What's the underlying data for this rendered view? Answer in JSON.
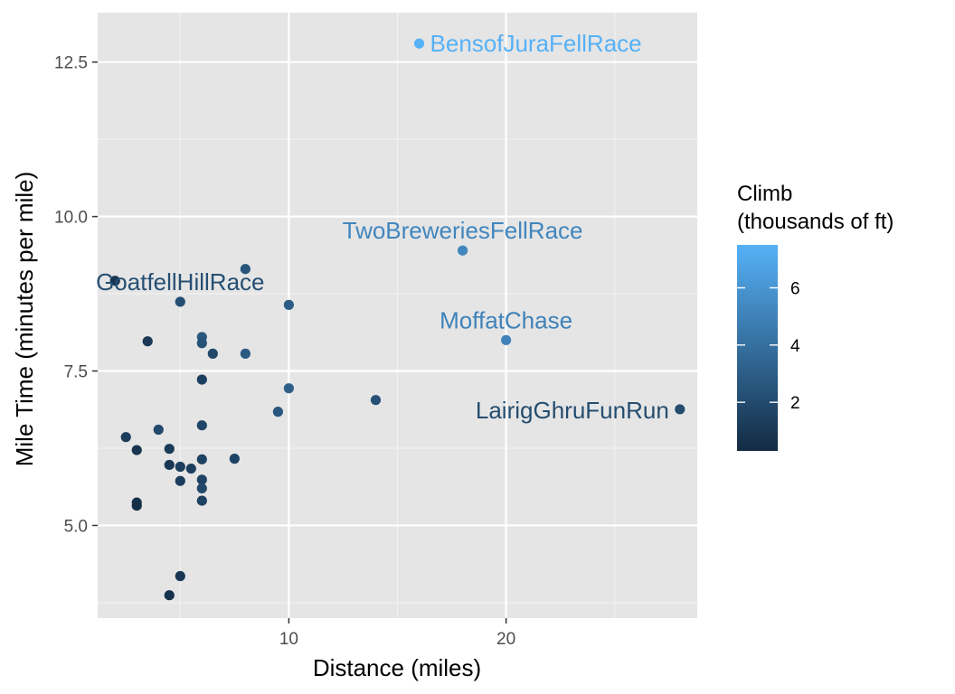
{
  "chart_data": {
    "type": "scatter",
    "xlabel": "Distance (miles)",
    "ylabel": "Mile Time (minutes per mile)",
    "xlim": [
      1.2,
      28.8
    ],
    "ylim": [
      3.5,
      13.3
    ],
    "x_ticks": [
      10,
      20
    ],
    "x_tick_labels": [
      "10",
      "20"
    ],
    "y_ticks": [
      5.0,
      7.5,
      10.0,
      12.5
    ],
    "y_tick_labels": [
      "5.0",
      "7.5",
      "10.0",
      "12.5"
    ],
    "grid": true,
    "background": "#e5e5e5",
    "legend": {
      "title_line1": "Climb",
      "title_line2": "(thousands of ft)",
      "placement": "right",
      "color_low": "#132b43",
      "color_high": "#56b1f7",
      "min": 0.3,
      "max": 7.5,
      "ticks": [
        2,
        4,
        6
      ],
      "tick_labels": [
        "2",
        "4",
        "6"
      ]
    },
    "points": [
      {
        "x": 16,
        "y": 12.8,
        "climb": 7.5
      },
      {
        "x": 18,
        "y": 9.45,
        "climb": 5.2
      },
      {
        "x": 20,
        "y": 8.0,
        "climb": 5.0
      },
      {
        "x": 28,
        "y": 6.88,
        "climb": 2.1
      },
      {
        "x": 5,
        "y": 8.62,
        "climb": 2.2
      },
      {
        "x": 2.0,
        "y": 8.96,
        "climb": 0.9
      },
      {
        "x": 8,
        "y": 9.15,
        "climb": 2.5
      },
      {
        "x": 10,
        "y": 8.57,
        "climb": 3.0
      },
      {
        "x": 3.5,
        "y": 7.98,
        "climb": 1.0
      },
      {
        "x": 6,
        "y": 8.05,
        "climb": 2.7
      },
      {
        "x": 6,
        "y": 7.95,
        "climb": 2.4
      },
      {
        "x": 6.5,
        "y": 7.78,
        "climb": 1.8
      },
      {
        "x": 8,
        "y": 7.78,
        "climb": 2.8
      },
      {
        "x": 6,
        "y": 7.36,
        "climb": 1.4
      },
      {
        "x": 10,
        "y": 7.22,
        "climb": 3.1
      },
      {
        "x": 14,
        "y": 7.03,
        "climb": 2.3
      },
      {
        "x": 9.5,
        "y": 6.84,
        "climb": 2.6
      },
      {
        "x": 6,
        "y": 6.62,
        "climb": 1.7
      },
      {
        "x": 4,
        "y": 6.55,
        "climb": 1.9
      },
      {
        "x": 2.5,
        "y": 6.43,
        "climb": 1.2
      },
      {
        "x": 3,
        "y": 6.22,
        "climb": 0.8
      },
      {
        "x": 4.5,
        "y": 6.24,
        "climb": 1.1
      },
      {
        "x": 6,
        "y": 6.07,
        "climb": 1.5
      },
      {
        "x": 7.5,
        "y": 6.08,
        "climb": 1.6
      },
      {
        "x": 4.5,
        "y": 5.98,
        "climb": 0.9
      },
      {
        "x": 5,
        "y": 5.95,
        "climb": 1.3
      },
      {
        "x": 5.5,
        "y": 5.92,
        "climb": 1.4
      },
      {
        "x": 6,
        "y": 5.74,
        "climb": 1.6
      },
      {
        "x": 5,
        "y": 5.72,
        "climb": 1.2
      },
      {
        "x": 6,
        "y": 5.6,
        "climb": 1.8
      },
      {
        "x": 6,
        "y": 5.4,
        "climb": 1.5
      },
      {
        "x": 3,
        "y": 5.37,
        "climb": 0.6
      },
      {
        "x": 3,
        "y": 5.32,
        "climb": 0.5
      },
      {
        "x": 5,
        "y": 4.18,
        "climb": 0.9
      },
      {
        "x": 4.5,
        "y": 3.87,
        "climb": 0.6
      }
    ],
    "annotations": [
      {
        "text": "BensofJuraFellRace",
        "x": 16,
        "y": 12.8,
        "climb": 7.5,
        "align": "right"
      },
      {
        "text": "TwoBreweriesFellRace",
        "x": 18,
        "y": 9.45,
        "climb": 5.2,
        "align": "above"
      },
      {
        "text": "MoffatChase",
        "x": 20,
        "y": 8.0,
        "climb": 5.0,
        "align": "above"
      },
      {
        "text": "LairigGhruFunRun",
        "x": 28,
        "y": 6.88,
        "climb": 2.1,
        "align": "left"
      },
      {
        "text": "GoatfellHillRace",
        "x": 5,
        "y": 8.62,
        "climb": 2.2,
        "align": "above"
      }
    ]
  }
}
